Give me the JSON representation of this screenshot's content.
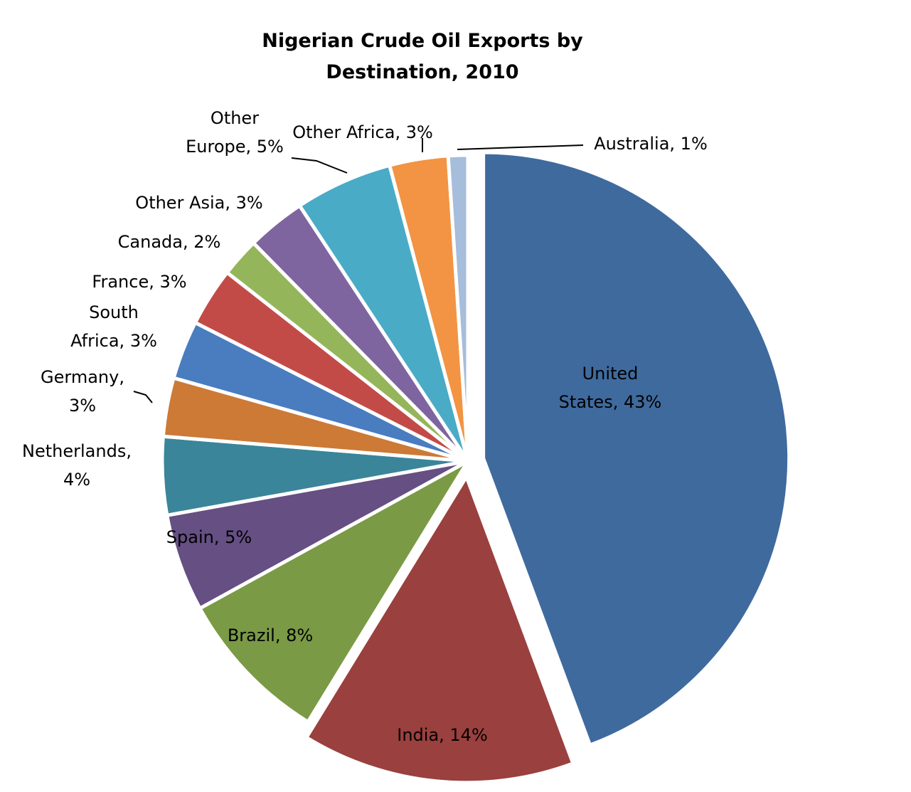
{
  "chart_data": {
    "type": "pie",
    "title": "Nigerian  Crude Oil Exports by Destination, 2010",
    "title_lines": [
      "Nigerian  Crude Oil Exports by",
      "Destination, 2010"
    ],
    "slices": [
      {
        "name": "United States",
        "value": 43,
        "label_lines": [
          "United",
          "States, 43%"
        ],
        "color": "#3F6A9E"
      },
      {
        "name": "India",
        "value": 14,
        "label_lines": [
          "India, 14%"
        ],
        "color": "#9A403E"
      },
      {
        "name": "Brazil",
        "value": 8,
        "label_lines": [
          "Brazil, 8%"
        ],
        "color": "#7A9A46"
      },
      {
        "name": "Spain",
        "value": 5,
        "label_lines": [
          "Spain, 5%"
        ],
        "color": "#654F83"
      },
      {
        "name": "Netherlands",
        "value": 4,
        "label_lines": [
          "Netherlands,",
          "4%"
        ],
        "color": "#3A8599"
      },
      {
        "name": "Germany",
        "value": 3,
        "label_lines": [
          "Germany,",
          "3%"
        ],
        "color": "#CC7A36"
      },
      {
        "name": "South Africa",
        "value": 3,
        "label_lines": [
          "South",
          "Africa, 3%"
        ],
        "color": "#4A7CC0"
      },
      {
        "name": "France",
        "value": 3,
        "label_lines": [
          "France, 3%"
        ],
        "color": "#C24B48"
      },
      {
        "name": "Canada",
        "value": 2,
        "label_lines": [
          "Canada, 2%"
        ],
        "color": "#95B55A"
      },
      {
        "name": "Other Asia",
        "value": 3,
        "label_lines": [
          "Other Asia, 3%"
        ],
        "color": "#7E65A0"
      },
      {
        "name": "Other Europe",
        "value": 5,
        "label_lines": [
          "Other",
          "Europe, 5%"
        ],
        "color": "#4AABC6"
      },
      {
        "name": "Other Africa",
        "value": 3,
        "label_lines": [
          "Other Africa, 3%"
        ],
        "color": "#F29443"
      },
      {
        "name": "Australia",
        "value": 1,
        "label_lines": [
          "Australia, 1%"
        ],
        "color": "#A6BDDB"
      }
    ],
    "legend": "none"
  }
}
